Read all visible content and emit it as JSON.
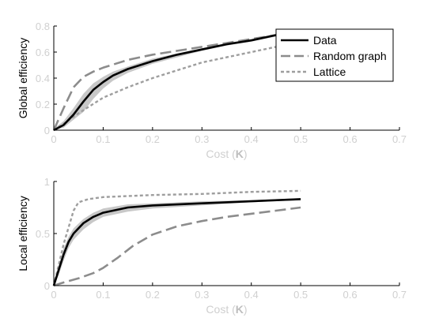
{
  "chart_data": [
    {
      "type": "line",
      "ylabel": "Global efficiency",
      "xlabel": {
        "prefix": "Cost (",
        "emph": "K",
        "suffix": ")"
      },
      "xlim": [
        0,
        0.7
      ],
      "ylim": [
        0,
        0.8
      ],
      "xticks": [
        "0",
        "0.1",
        "0.2",
        "0.3",
        "0.4",
        "0.5",
        "0.6",
        "0.7"
      ],
      "xtick_values": [
        0,
        0.1,
        0.2,
        0.3,
        0.4,
        0.5,
        0.6,
        0.7
      ],
      "yticks": [
        "0",
        "0.2",
        "0.4",
        "0.6",
        "0.8"
      ],
      "ytick_values": [
        0,
        0.2,
        0.4,
        0.6,
        0.8
      ],
      "grid": false,
      "legend": {
        "placement": "top-right",
        "entries": [
          "Data",
          "Random graph",
          "Lattice"
        ]
      },
      "series": [
        {
          "name": "Data",
          "color": "#000000",
          "style": "solid",
          "x": [
            0,
            0.02,
            0.04,
            0.06,
            0.08,
            0.1,
            0.12,
            0.15,
            0.2,
            0.25,
            0.3,
            0.35,
            0.4,
            0.45,
            0.5
          ],
          "y": [
            0,
            0.04,
            0.12,
            0.22,
            0.31,
            0.37,
            0.42,
            0.47,
            0.53,
            0.58,
            0.62,
            0.66,
            0.69,
            0.73,
            0.75
          ],
          "band_upper": [
            0.01,
            0.07,
            0.17,
            0.28,
            0.36,
            0.41,
            0.45,
            0.49,
            0.55,
            0.59,
            0.63,
            0.67,
            0.7,
            0.74,
            0.76
          ],
          "band_lower": [
            0,
            0.02,
            0.08,
            0.14,
            0.24,
            0.32,
            0.38,
            0.44,
            0.51,
            0.56,
            0.61,
            0.65,
            0.68,
            0.72,
            0.74
          ]
        },
        {
          "name": "Random graph",
          "color": "#8c8c8c",
          "style": "dashed",
          "x": [
            0,
            0.02,
            0.04,
            0.06,
            0.08,
            0.1,
            0.15,
            0.2,
            0.25,
            0.3,
            0.35,
            0.4,
            0.45,
            0.5
          ],
          "y": [
            0,
            0.17,
            0.33,
            0.41,
            0.45,
            0.48,
            0.54,
            0.58,
            0.61,
            0.64,
            0.67,
            0.7,
            0.73,
            0.75
          ]
        },
        {
          "name": "Lattice",
          "color": "#9e9e9e",
          "style": "dotted",
          "x": [
            0,
            0.02,
            0.05,
            0.1,
            0.15,
            0.2,
            0.25,
            0.3,
            0.35,
            0.4,
            0.45,
            0.5
          ],
          "y": [
            0,
            0.05,
            0.13,
            0.25,
            0.33,
            0.4,
            0.46,
            0.52,
            0.56,
            0.6,
            0.64,
            0.68
          ]
        }
      ]
    },
    {
      "type": "line",
      "ylabel": "Local efficiency",
      "xlabel": {
        "prefix": "Cost (",
        "emph": "K",
        "suffix": ")"
      },
      "xlim": [
        0,
        0.7
      ],
      "ylim": [
        0,
        1
      ],
      "xticks": [
        "0",
        "0.1",
        "0.2",
        "0.3",
        "0.4",
        "0.5",
        "0.6",
        "0.7"
      ],
      "xtick_values": [
        0,
        0.1,
        0.2,
        0.3,
        0.4,
        0.5,
        0.6,
        0.7
      ],
      "yticks": [
        "0",
        "0.5",
        "1"
      ],
      "ytick_values": [
        0,
        0.5,
        1
      ],
      "grid": false,
      "series": [
        {
          "name": "Data",
          "color": "#000000",
          "style": "solid",
          "x": [
            0,
            0.01,
            0.02,
            0.03,
            0.04,
            0.06,
            0.08,
            0.1,
            0.15,
            0.2,
            0.3,
            0.4,
            0.5
          ],
          "y": [
            0,
            0.15,
            0.3,
            0.42,
            0.5,
            0.6,
            0.66,
            0.7,
            0.75,
            0.77,
            0.79,
            0.81,
            0.83
          ],
          "band_upper": [
            0.02,
            0.2,
            0.36,
            0.47,
            0.55,
            0.64,
            0.7,
            0.74,
            0.78,
            0.79,
            0.81,
            0.82,
            0.84
          ],
          "band_lower": [
            0,
            0.1,
            0.24,
            0.36,
            0.44,
            0.54,
            0.61,
            0.66,
            0.71,
            0.74,
            0.77,
            0.8,
            0.82
          ]
        },
        {
          "name": "Random graph",
          "color": "#8c8c8c",
          "style": "dashed",
          "x": [
            0,
            0.02,
            0.05,
            0.08,
            0.1,
            0.13,
            0.16,
            0.2,
            0.25,
            0.3,
            0.35,
            0.4,
            0.45,
            0.5
          ],
          "y": [
            0,
            0.03,
            0.07,
            0.12,
            0.17,
            0.27,
            0.38,
            0.49,
            0.57,
            0.62,
            0.66,
            0.69,
            0.72,
            0.75
          ]
        },
        {
          "name": "Lattice",
          "color": "#9e9e9e",
          "style": "dotted",
          "x": [
            0,
            0.02,
            0.04,
            0.05,
            0.07,
            0.1,
            0.15,
            0.2,
            0.3,
            0.4,
            0.5
          ],
          "y": [
            0,
            0.4,
            0.72,
            0.8,
            0.83,
            0.85,
            0.86,
            0.87,
            0.88,
            0.9,
            0.91
          ]
        }
      ]
    }
  ]
}
